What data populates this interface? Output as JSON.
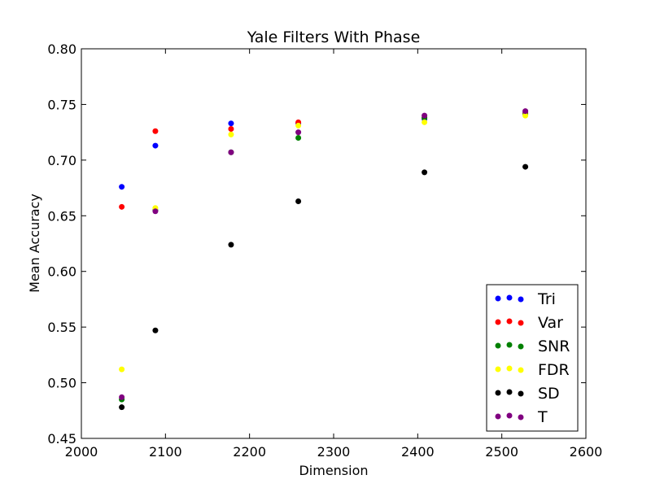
{
  "chart_data": {
    "type": "scatter",
    "title": "Yale Filters With Phase",
    "xlabel": "Dimension",
    "ylabel": "Mean Accuracy",
    "xlim": [
      2000,
      2600
    ],
    "ylim": [
      0.45,
      0.8
    ],
    "xticks": [
      "2000",
      "2100",
      "2200",
      "2300",
      "2400",
      "2500",
      "2600"
    ],
    "yticks": [
      "0.45",
      "0.50",
      "0.55",
      "0.60",
      "0.65",
      "0.70",
      "0.75",
      "0.80"
    ],
    "grid": false,
    "legend_position": "lower-right",
    "series": [
      {
        "name": "Tri",
        "color": "#0000ff",
        "x": [
          2048,
          2088,
          2178,
          2258,
          2408,
          2528
        ],
        "y": [
          0.676,
          0.713,
          0.733,
          0.733,
          0.737,
          0.743
        ]
      },
      {
        "name": "Var",
        "color": "#ff0000",
        "x": [
          2048,
          2088,
          2178,
          2258,
          2408,
          2528
        ],
        "y": [
          0.658,
          0.726,
          0.728,
          0.734,
          0.738,
          0.742
        ]
      },
      {
        "name": "SNR",
        "color": "#008000",
        "x": [
          2048,
          2088,
          2178,
          2258,
          2408,
          2528
        ],
        "y": [
          0.485,
          0.655,
          0.707,
          0.72,
          0.738,
          0.741
        ]
      },
      {
        "name": "FDR",
        "color": "#ffff00",
        "x": [
          2048,
          2088,
          2178,
          2258,
          2408,
          2528
        ],
        "y": [
          0.512,
          0.657,
          0.723,
          0.731,
          0.734,
          0.74
        ]
      },
      {
        "name": "SD",
        "color": "#000000",
        "x": [
          2048,
          2088,
          2178,
          2258,
          2408,
          2528
        ],
        "y": [
          0.478,
          0.547,
          0.624,
          0.663,
          0.689,
          0.694
        ]
      },
      {
        "name": "T",
        "color": "#800080",
        "x": [
          2048,
          2088,
          2178,
          2258,
          2408,
          2528
        ],
        "y": [
          0.487,
          0.654,
          0.707,
          0.725,
          0.74,
          0.744
        ]
      }
    ]
  }
}
